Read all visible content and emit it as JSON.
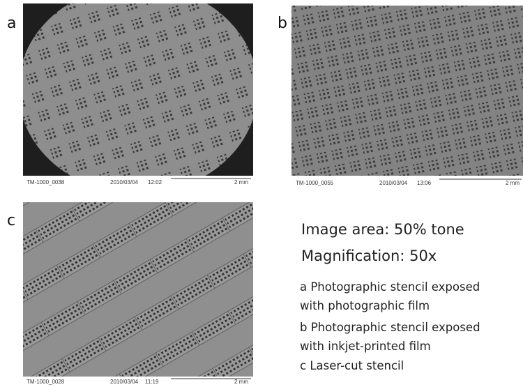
{
  "panels": [
    {
      "label": "a",
      "caption": {
        "id": "TM-1000_0038",
        "date": "2010/03/04",
        "time": "12:02",
        "scale": "2 mm"
      }
    },
    {
      "label": "b",
      "caption": {
        "id": "TM-1000_0055",
        "date": "2010/03/04",
        "time": "13:06",
        "scale": "2 mm"
      }
    },
    {
      "label": "c",
      "caption": {
        "id": "TM-1000_0028",
        "date": "2010/03/04",
        "time": "11:19",
        "scale": "2 mm"
      }
    }
  ],
  "summary": [
    "Image area: 50% tone",
    "Magnification: 50x"
  ],
  "notes": [
    "a Photographic stencil exposed",
    "with photographic film",
    "b Photographic stencil exposed",
    "with inkjet-printed film",
    "c Laser-cut stencil"
  ]
}
